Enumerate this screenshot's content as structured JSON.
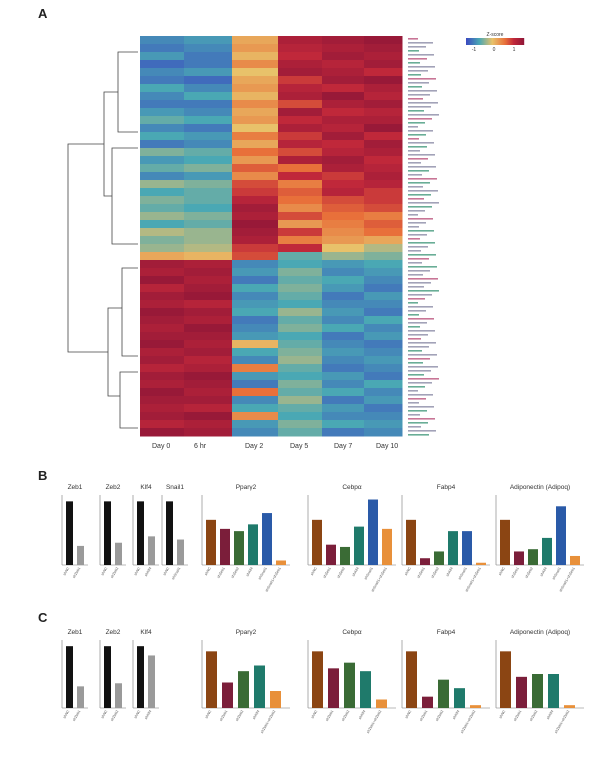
{
  "panels": [
    "A",
    "B",
    "C"
  ],
  "colors": {
    "low": "#3b4cc0",
    "mid_low": "#4aa8b4",
    "mid": "#f4a64a",
    "high": "#8e1538",
    "bar_brown": "#8b4513",
    "bar_maroon": "#7b1e3a",
    "bar_darkgreen": "#3a6b35",
    "bar_teal": "#1f7a6b",
    "bar_blue": "#2a5aa8",
    "bar_orange": "#e8903a",
    "bar_black": "#111111",
    "bar_gray": "#9a9a9a"
  },
  "chart_data": [
    {
      "type": "heatmap",
      "panel": "A",
      "legend_title": "Z-score",
      "legend_ticks": [
        "-1",
        "0",
        "1"
      ],
      "columns": [
        "Day 0",
        "6 hr",
        "Day 2",
        "Day 5",
        "Day 7",
        "Day 10"
      ],
      "rows": [
        [
          -0.8,
          -0.7,
          0.2,
          1.2,
          1.3,
          1.4
        ],
        [
          -0.9,
          -0.8,
          0.3,
          1.1,
          1.2,
          1.3
        ],
        [
          -0.7,
          -0.9,
          0.1,
          1.0,
          1.3,
          1.2
        ],
        [
          -1.0,
          -0.9,
          0.4,
          1.2,
          1.1,
          1.3
        ],
        [
          -0.8,
          -0.7,
          0.0,
          1.3,
          1.2,
          1.0
        ],
        [
          -0.9,
          -1.0,
          0.2,
          0.9,
          1.3,
          1.4
        ],
        [
          -0.6,
          -0.8,
          0.3,
          1.1,
          1.0,
          1.2
        ],
        [
          -0.8,
          -0.6,
          0.1,
          1.2,
          1.4,
          1.1
        ],
        [
          -0.9,
          -0.9,
          0.4,
          0.8,
          1.2,
          1.3
        ],
        [
          -0.7,
          -0.8,
          0.2,
          1.3,
          1.0,
          1.1
        ],
        [
          -0.5,
          -0.6,
          0.3,
          1.0,
          1.2,
          1.2
        ],
        [
          -0.8,
          -0.9,
          0.0,
          1.2,
          1.1,
          1.4
        ],
        [
          -0.6,
          -0.7,
          0.5,
          0.9,
          1.3,
          1.0
        ],
        [
          -0.9,
          -0.8,
          0.2,
          1.1,
          1.0,
          1.3
        ],
        [
          -0.4,
          -0.5,
          0.6,
          0.8,
          1.1,
          1.2
        ],
        [
          -0.7,
          -0.6,
          0.3,
          1.2,
          1.3,
          1.0
        ],
        [
          -0.5,
          -0.4,
          0.7,
          0.6,
          1.2,
          1.1
        ],
        [
          -0.8,
          -0.7,
          0.4,
          1.0,
          0.9,
          1.2
        ],
        [
          -0.3,
          -0.4,
          0.8,
          0.5,
          1.0,
          1.1
        ],
        [
          -0.6,
          -0.5,
          0.9,
          0.7,
          1.1,
          0.9
        ],
        [
          -0.4,
          -0.5,
          1.1,
          0.6,
          0.8,
          0.9
        ],
        [
          -0.5,
          -0.6,
          1.3,
          0.4,
          0.7,
          0.8
        ],
        [
          -0.3,
          -0.4,
          1.2,
          0.8,
          0.6,
          0.5
        ],
        [
          -0.6,
          -0.5,
          1.4,
          0.3,
          0.5,
          0.7
        ],
        [
          -0.2,
          -0.3,
          1.3,
          0.9,
          0.4,
          0.6
        ],
        [
          -0.4,
          -0.3,
          1.2,
          0.5,
          0.3,
          0.2
        ],
        [
          -0.3,
          -0.2,
          0.9,
          1.0,
          0.0,
          -0.2
        ],
        [
          0.2,
          0.1,
          0.8,
          -0.5,
          -0.3,
          -0.4
        ],
        [
          1.3,
          1.2,
          -0.8,
          -0.6,
          -0.7,
          -0.6
        ],
        [
          1.2,
          1.3,
          -0.7,
          -0.4,
          -0.8,
          -0.7
        ],
        [
          1.4,
          1.2,
          -0.9,
          -0.5,
          -0.6,
          -0.8
        ],
        [
          1.1,
          1.3,
          -0.6,
          -0.4,
          -0.7,
          -0.9
        ],
        [
          1.3,
          1.4,
          -0.8,
          -0.5,
          -0.9,
          -0.7
        ],
        [
          1.2,
          1.1,
          -0.7,
          -0.6,
          -0.8,
          -0.8
        ],
        [
          1.4,
          1.3,
          -0.6,
          -0.3,
          -0.7,
          -0.9
        ],
        [
          1.3,
          1.2,
          -0.9,
          -0.5,
          -0.8,
          -0.6
        ],
        [
          1.2,
          1.4,
          -0.8,
          -0.4,
          -0.6,
          -0.8
        ],
        [
          1.3,
          1.3,
          -0.7,
          -0.6,
          -0.9,
          -0.7
        ],
        [
          1.4,
          1.2,
          0.1,
          -0.5,
          -0.8,
          -0.9
        ],
        [
          1.2,
          1.3,
          -0.6,
          -0.4,
          -0.7,
          -0.8
        ],
        [
          1.3,
          1.1,
          -0.8,
          -0.3,
          -0.8,
          -0.7
        ],
        [
          1.1,
          1.2,
          0.5,
          -0.5,
          -0.9,
          -0.8
        ],
        [
          1.3,
          1.4,
          -0.7,
          -0.6,
          -0.7,
          -0.9
        ],
        [
          1.2,
          1.3,
          -0.9,
          -0.4,
          -0.8,
          -0.6
        ],
        [
          1.4,
          1.2,
          0.6,
          -0.5,
          -0.6,
          -0.8
        ],
        [
          1.3,
          1.3,
          -0.8,
          -0.3,
          -0.9,
          -0.7
        ],
        [
          1.2,
          1.1,
          -0.6,
          -0.5,
          -0.7,
          -0.9
        ],
        [
          1.3,
          1.4,
          0.4,
          -0.6,
          -0.8,
          -0.8
        ],
        [
          1.1,
          1.2,
          -0.7,
          -0.4,
          -0.6,
          -0.7
        ],
        [
          1.4,
          1.3,
          -0.8,
          -0.5,
          -0.9,
          -0.8
        ]
      ]
    },
    {
      "type": "bar",
      "panel": "B",
      "subcharts": [
        {
          "title": "Zeb1",
          "categories": [
            "shNC",
            "shZeb1"
          ],
          "values": [
            1.0,
            0.3
          ],
          "colors": [
            "#111111",
            "#9a9a9a"
          ]
        },
        {
          "title": "Zeb2",
          "categories": [
            "shNC",
            "shZeb2"
          ],
          "values": [
            1.0,
            0.35
          ],
          "colors": [
            "#111111",
            "#9a9a9a"
          ]
        },
        {
          "title": "Klf4",
          "categories": [
            "shNC",
            "shKlf4"
          ],
          "values": [
            1.0,
            0.45
          ],
          "colors": [
            "#111111",
            "#9a9a9a"
          ]
        },
        {
          "title": "Snail1",
          "categories": [
            "shNC",
            "shSnail1"
          ],
          "values": [
            1.0,
            0.4
          ],
          "colors": [
            "#111111",
            "#9a9a9a"
          ]
        },
        {
          "title": "Pparγ2",
          "categories": [
            "shNC",
            "shZeb1",
            "shZeb2",
            "shKlf4",
            "shSnail1",
            "shSnail1+shZeb1"
          ],
          "values": [
            1.0,
            0.8,
            0.75,
            0.9,
            1.15,
            0.1
          ],
          "colors": [
            "#8b4513",
            "#7b1e3a",
            "#3a6b35",
            "#1f7a6b",
            "#2a5aa8",
            "#e8903a"
          ]
        },
        {
          "title": "Cebpα",
          "categories": [
            "shNC",
            "shZeb1",
            "shZeb2",
            "shKlf4",
            "shSnail1",
            "shSnail1+shZeb1"
          ],
          "values": [
            1.0,
            0.45,
            0.4,
            0.85,
            1.45,
            0.8
          ],
          "colors": [
            "#8b4513",
            "#7b1e3a",
            "#3a6b35",
            "#1f7a6b",
            "#2a5aa8",
            "#e8903a"
          ]
        },
        {
          "title": "Fabp4",
          "categories": [
            "shNC",
            "shZeb1",
            "shZeb2",
            "shKlf4",
            "shSnail1",
            "shSnail1+shZeb1"
          ],
          "values": [
            1.0,
            0.15,
            0.3,
            0.75,
            0.75,
            0.05
          ],
          "colors": [
            "#8b4513",
            "#7b1e3a",
            "#3a6b35",
            "#1f7a6b",
            "#2a5aa8",
            "#e8903a"
          ]
        },
        {
          "title": "Adiponectin (Adipoq)",
          "categories": [
            "shNC",
            "shZeb1",
            "shZeb2",
            "shKlf4",
            "shSnail1",
            "shSnail1+shZeb1"
          ],
          "values": [
            1.0,
            0.3,
            0.35,
            0.6,
            1.3,
            0.2
          ],
          "colors": [
            "#8b4513",
            "#7b1e3a",
            "#3a6b35",
            "#1f7a6b",
            "#2a5aa8",
            "#e8903a"
          ]
        }
      ]
    },
    {
      "type": "bar",
      "panel": "C",
      "subcharts": [
        {
          "title": "Zeb1",
          "categories": [
            "shNC",
            "shZeb1"
          ],
          "values": [
            1.0,
            0.35
          ],
          "colors": [
            "#111111",
            "#9a9a9a"
          ]
        },
        {
          "title": "Zeb2",
          "categories": [
            "shNC",
            "shZeb2"
          ],
          "values": [
            1.0,
            0.4
          ],
          "colors": [
            "#111111",
            "#9a9a9a"
          ]
        },
        {
          "title": "Klf4",
          "categories": [
            "shNC",
            "shKlf4"
          ],
          "values": [
            1.0,
            0.85
          ],
          "colors": [
            "#111111",
            "#9a9a9a"
          ]
        },
        {
          "title": "Pparγ2",
          "categories": [
            "shNC",
            "shZeb1",
            "shZeb2",
            "shKlf4",
            "shZeb1+shZeb2"
          ],
          "values": [
            1.0,
            0.45,
            0.65,
            0.75,
            0.3
          ],
          "colors": [
            "#8b4513",
            "#7b1e3a",
            "#3a6b35",
            "#1f7a6b",
            "#e8903a"
          ]
        },
        {
          "title": "Cebpα",
          "categories": [
            "shNC",
            "shZeb1",
            "shZeb2",
            "shKlf4",
            "shZeb1+shZeb2"
          ],
          "values": [
            1.0,
            0.7,
            0.8,
            0.65,
            0.15
          ],
          "colors": [
            "#8b4513",
            "#7b1e3a",
            "#3a6b35",
            "#1f7a6b",
            "#e8903a"
          ]
        },
        {
          "title": "Fabp4",
          "categories": [
            "shNC",
            "shZeb1",
            "shZeb2",
            "shKlf4",
            "shZeb1+shZeb2"
          ],
          "values": [
            1.0,
            0.2,
            0.5,
            0.35,
            0.05
          ],
          "colors": [
            "#8b4513",
            "#7b1e3a",
            "#3a6b35",
            "#1f7a6b",
            "#e8903a"
          ]
        },
        {
          "title": "Adiponectin (Adipoq)",
          "categories": [
            "shNC",
            "shZeb1",
            "shZeb2",
            "shKlf4",
            "shZeb1+shZeb2"
          ],
          "values": [
            1.0,
            0.55,
            0.6,
            0.6,
            0.05
          ],
          "colors": [
            "#8b4513",
            "#7b1e3a",
            "#3a6b35",
            "#1f7a6b",
            "#e8903a"
          ]
        }
      ]
    }
  ]
}
